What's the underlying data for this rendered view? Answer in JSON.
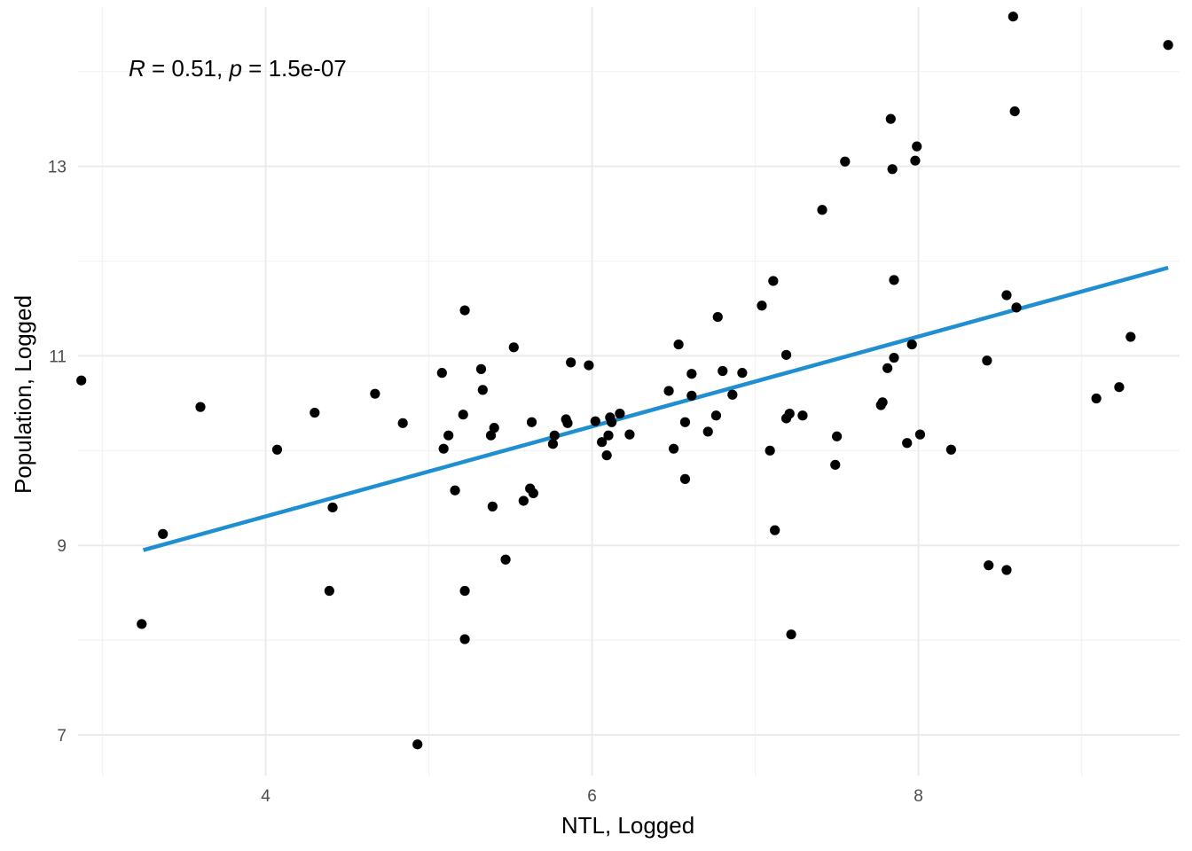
{
  "chart_data": {
    "type": "scatter",
    "xlabel": "NTL, Logged",
    "ylabel": "Population, Logged",
    "xlim": [
      2.85,
      9.6
    ],
    "ylim": [
      6.57,
      14.68
    ],
    "x_ticks": [
      4,
      6,
      8
    ],
    "y_ticks": [
      7,
      9,
      11,
      13
    ],
    "x_minor": [
      3,
      5,
      7,
      9
    ],
    "y_minor": [
      8,
      10,
      12,
      14
    ],
    "grid": true,
    "point_color": "#000000",
    "line_color": "#1f8fd1",
    "annotation": {
      "r_symbol": "R",
      "r_text": " = 0.51, ",
      "p_symbol": "p",
      "p_text": " = 1.5e-07"
    },
    "regression": {
      "x": [
        3.25,
        9.53
      ],
      "y": [
        8.95,
        11.93
      ]
    },
    "points": [
      [
        2.87,
        10.74
      ],
      [
        3.24,
        8.17
      ],
      [
        3.37,
        9.12
      ],
      [
        3.6,
        10.46
      ],
      [
        4.07,
        10.01
      ],
      [
        4.3,
        10.4
      ],
      [
        4.39,
        8.52
      ],
      [
        4.41,
        9.4
      ],
      [
        4.67,
        10.6
      ],
      [
        4.84,
        10.29
      ],
      [
        4.93,
        6.9
      ],
      [
        5.08,
        10.82
      ],
      [
        5.09,
        10.02
      ],
      [
        5.12,
        10.16
      ],
      [
        5.16,
        9.58
      ],
      [
        5.21,
        10.38
      ],
      [
        5.22,
        11.48
      ],
      [
        5.22,
        8.52
      ],
      [
        5.22,
        8.01
      ],
      [
        5.32,
        10.86
      ],
      [
        5.33,
        10.64
      ],
      [
        5.38,
        10.16
      ],
      [
        5.39,
        9.41
      ],
      [
        5.4,
        10.24
      ],
      [
        5.47,
        8.85
      ],
      [
        5.52,
        11.09
      ],
      [
        5.58,
        9.47
      ],
      [
        5.62,
        9.6
      ],
      [
        5.63,
        10.3
      ],
      [
        5.64,
        9.55
      ],
      [
        5.76,
        10.07
      ],
      [
        5.77,
        10.16
      ],
      [
        5.84,
        10.33
      ],
      [
        5.85,
        10.29
      ],
      [
        5.87,
        10.93
      ],
      [
        5.98,
        10.9
      ],
      [
        6.02,
        10.31
      ],
      [
        6.06,
        10.09
      ],
      [
        6.09,
        9.95
      ],
      [
        6.1,
        10.16
      ],
      [
        6.11,
        10.35
      ],
      [
        6.12,
        10.3
      ],
      [
        6.17,
        10.39
      ],
      [
        6.23,
        10.17
      ],
      [
        6.47,
        10.63
      ],
      [
        6.5,
        10.02
      ],
      [
        6.53,
        11.12
      ],
      [
        6.57,
        9.7
      ],
      [
        6.57,
        10.3
      ],
      [
        6.61,
        10.58
      ],
      [
        6.61,
        10.81
      ],
      [
        6.71,
        10.2
      ],
      [
        6.76,
        10.37
      ],
      [
        6.77,
        11.41
      ],
      [
        6.8,
        10.84
      ],
      [
        6.86,
        10.59
      ],
      [
        6.92,
        10.82
      ],
      [
        7.04,
        11.53
      ],
      [
        7.09,
        10.0
      ],
      [
        7.11,
        11.79
      ],
      [
        7.12,
        9.16
      ],
      [
        7.19,
        11.01
      ],
      [
        7.19,
        10.34
      ],
      [
        7.21,
        10.39
      ],
      [
        7.22,
        8.06
      ],
      [
        7.29,
        10.37
      ],
      [
        7.41,
        12.54
      ],
      [
        7.49,
        9.85
      ],
      [
        7.5,
        10.15
      ],
      [
        7.55,
        13.05
      ],
      [
        7.77,
        10.48
      ],
      [
        7.78,
        10.51
      ],
      [
        7.81,
        10.87
      ],
      [
        7.83,
        13.5
      ],
      [
        7.84,
        12.97
      ],
      [
        7.85,
        10.98
      ],
      [
        7.85,
        11.8
      ],
      [
        7.93,
        10.08
      ],
      [
        7.96,
        11.12
      ],
      [
        7.98,
        13.06
      ],
      [
        7.99,
        13.21
      ],
      [
        8.01,
        10.17
      ],
      [
        8.2,
        10.01
      ],
      [
        8.42,
        10.95
      ],
      [
        8.43,
        8.79
      ],
      [
        8.54,
        11.64
      ],
      [
        8.54,
        8.74
      ],
      [
        8.58,
        14.58
      ],
      [
        8.59,
        13.58
      ],
      [
        8.6,
        11.51
      ],
      [
        9.09,
        10.55
      ],
      [
        9.23,
        10.67
      ],
      [
        9.3,
        11.2
      ],
      [
        9.53,
        14.28
      ]
    ]
  }
}
